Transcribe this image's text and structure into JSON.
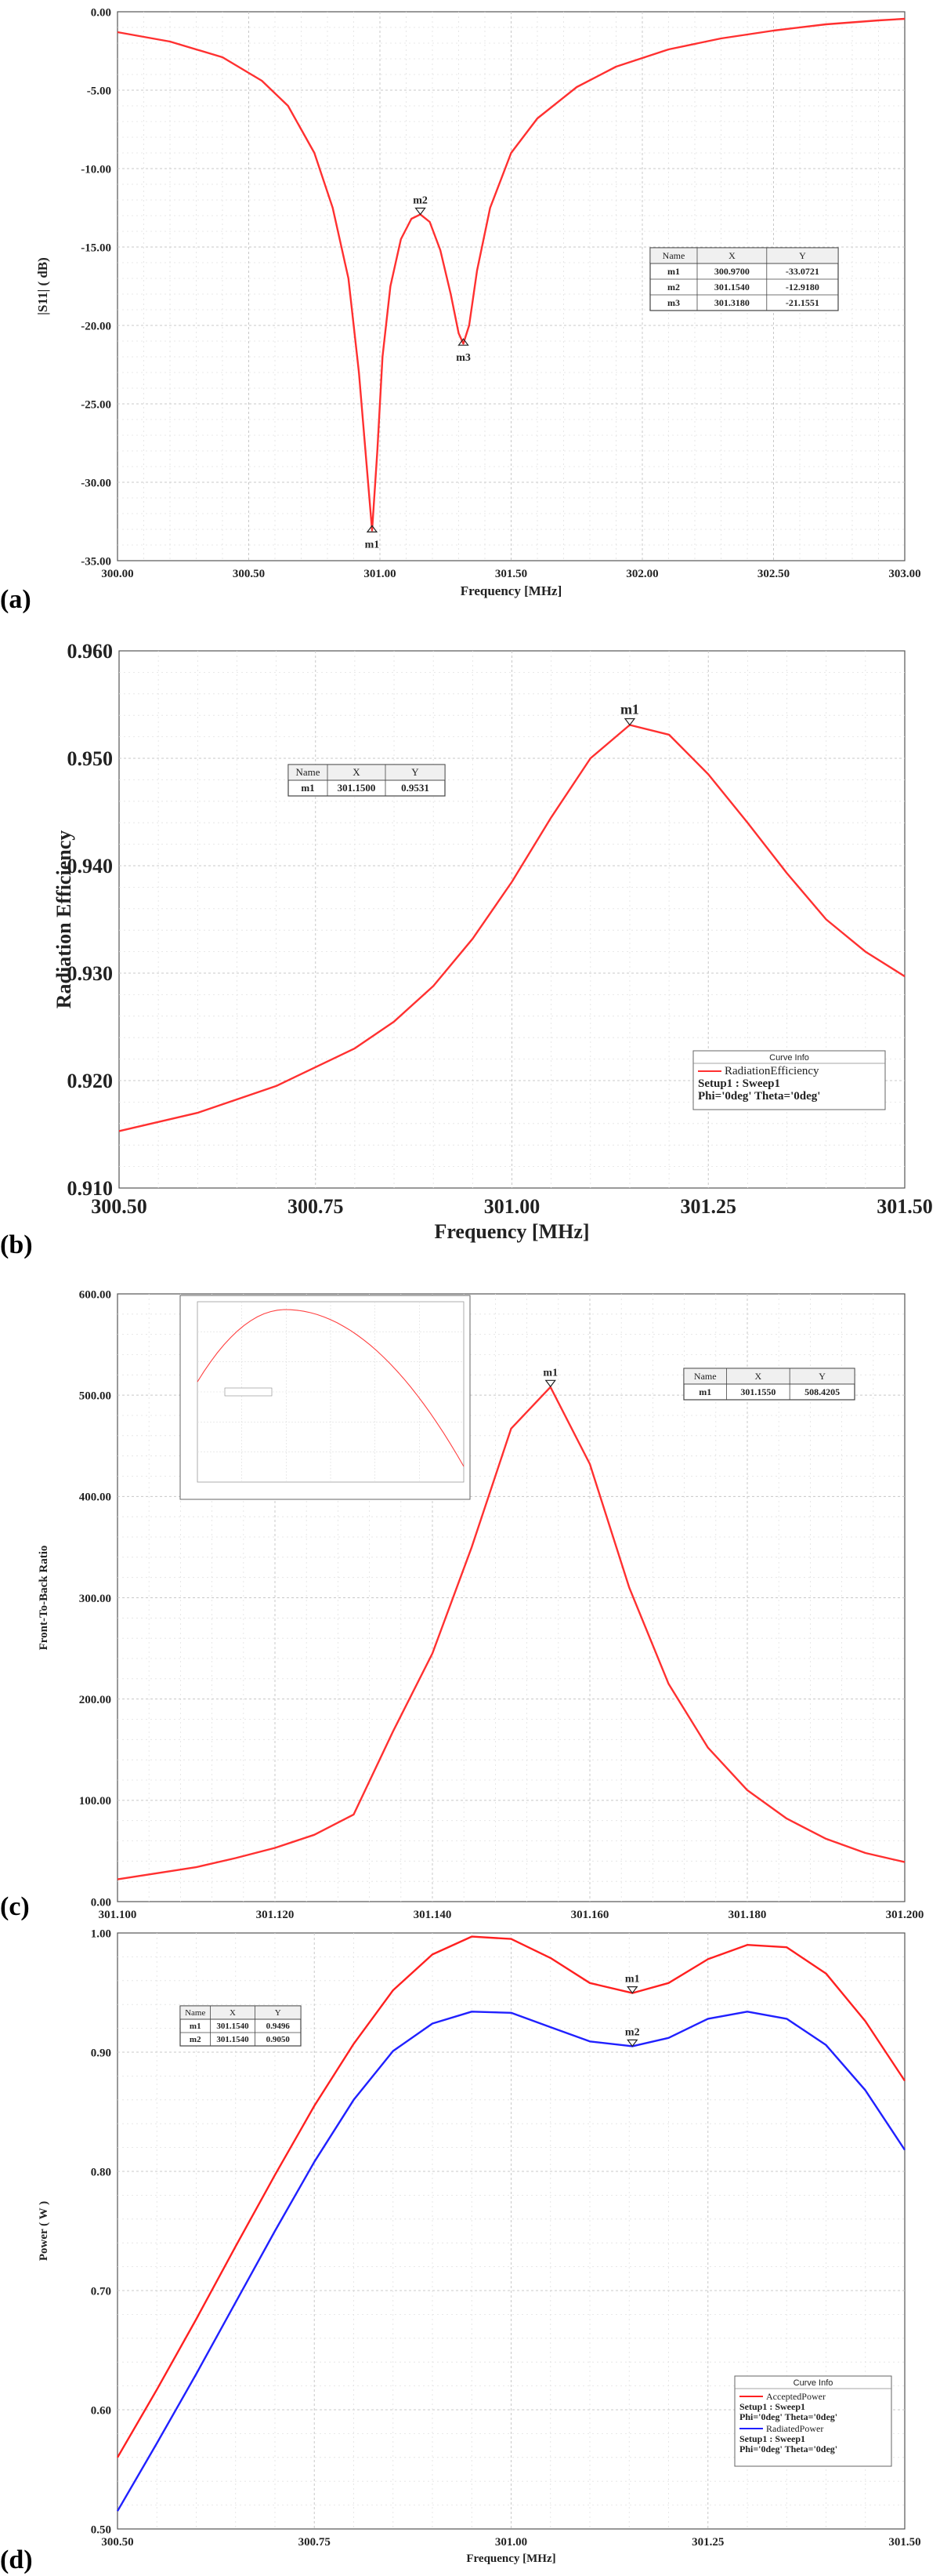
{
  "panel_labels": [
    "(a)",
    "(b)",
    "(c)",
    "(d)"
  ],
  "chart_data": [
    {
      "id": "a",
      "type": "line",
      "xlabel": "Frequency [MHz]",
      "ylabel": "|S11| ( dB)",
      "xlim": [
        300.0,
        303.0
      ],
      "ylim": [
        -35.0,
        0.0
      ],
      "xticks": [
        "300.00",
        "300.50",
        "301.00",
        "301.50",
        "302.00",
        "302.50",
        "303.00"
      ],
      "yticks": [
        "0.00",
        "-5.00",
        "-10.00",
        "-15.00",
        "-20.00",
        "-25.00",
        "-30.00",
        "-35.00"
      ],
      "grid": true,
      "series": [
        {
          "color": "#ff3030",
          "x": [
            300.0,
            300.2,
            300.4,
            300.55,
            300.65,
            300.75,
            300.82,
            300.88,
            300.92,
            300.95,
            300.97,
            300.99,
            301.01,
            301.04,
            301.08,
            301.12,
            301.154,
            301.19,
            301.23,
            301.27,
            301.3,
            301.318,
            301.34,
            301.37,
            301.42,
            301.5,
            301.6,
            301.75,
            301.9,
            302.1,
            302.3,
            302.5,
            302.7,
            302.9,
            303.0
          ],
          "y": [
            -1.3,
            -1.9,
            -2.9,
            -4.4,
            -6.0,
            -9.0,
            -12.5,
            -17.0,
            -23.0,
            -29.0,
            -33.07,
            -28.0,
            -22.0,
            -17.5,
            -14.5,
            -13.2,
            -12.92,
            -13.4,
            -15.2,
            -18.0,
            -20.5,
            -21.16,
            -20.0,
            -16.5,
            -12.5,
            -9.0,
            -6.8,
            -4.8,
            -3.5,
            -2.4,
            -1.7,
            -1.2,
            -0.8,
            -0.55,
            -0.45
          ]
        }
      ],
      "markers": [
        {
          "name": "m1",
          "x": 300.97,
          "y": -33.07
        },
        {
          "name": "m2",
          "x": 301.154,
          "y": -12.92
        },
        {
          "name": "m3",
          "x": 301.318,
          "y": -21.16
        }
      ],
      "marker_table": {
        "headers": [
          "Name",
          "X",
          "Y"
        ],
        "rows": [
          [
            "m1",
            "300.9700",
            "-33.0721"
          ],
          [
            "m2",
            "301.1540",
            "-12.9180"
          ],
          [
            "m3",
            "301.3180",
            "-21.1551"
          ]
        ]
      }
    },
    {
      "id": "b",
      "type": "line",
      "xlabel": "Frequency [MHz]",
      "ylabel": "Radiation Efficiency",
      "xlim": [
        300.5,
        301.5
      ],
      "ylim": [
        0.91,
        0.96
      ],
      "xticks": [
        "300.50",
        "300.75",
        "301.00",
        "301.25",
        "301.50"
      ],
      "yticks": [
        "0.960",
        "0.950",
        "0.940",
        "0.930",
        "0.920",
        "0.910"
      ],
      "grid": true,
      "series": [
        {
          "color": "#ff3030",
          "x": [
            300.5,
            300.6,
            300.7,
            300.8,
            300.85,
            300.9,
            300.95,
            301.0,
            301.05,
            301.1,
            301.15,
            301.2,
            301.25,
            301.3,
            301.35,
            301.4,
            301.45,
            301.5
          ],
          "y": [
            0.9153,
            0.917,
            0.9195,
            0.923,
            0.9255,
            0.9288,
            0.9332,
            0.9385,
            0.9445,
            0.95,
            0.9531,
            0.9522,
            0.9485,
            0.944,
            0.9393,
            0.935,
            0.932,
            0.9297
          ]
        }
      ],
      "markers": [
        {
          "name": "m1",
          "x": 301.15,
          "y": 0.9531
        }
      ],
      "marker_table": {
        "headers": [
          "Name",
          "X",
          "Y"
        ],
        "rows": [
          [
            "m1",
            "301.1500",
            "0.9531"
          ]
        ]
      },
      "legend": {
        "title": "Curve Info",
        "entries": [
          {
            "label": "RadiationEfficiency",
            "lines": [
              "Setup1 : Sweep1",
              "Phi='0deg' Theta='0deg'"
            ],
            "color": "#ff3030"
          }
        ]
      }
    },
    {
      "id": "c",
      "type": "line",
      "xlabel": "Frequency [MHz]",
      "ylabel": "Front-To-Back Ratio",
      "xlim": [
        301.1,
        301.2
      ],
      "ylim": [
        0.0,
        600.0
      ],
      "xticks": [
        "301.100",
        "301.120",
        "301.140",
        "301.160",
        "301.180",
        "301.200"
      ],
      "yticks": [
        "600.00",
        "500.00",
        "400.00",
        "300.00",
        "200.00",
        "100.00",
        "0.00"
      ],
      "grid": true,
      "series": [
        {
          "color": "#ff3030",
          "x": [
            301.1,
            301.11,
            301.115,
            301.12,
            301.125,
            301.13,
            301.135,
            301.14,
            301.145,
            301.15,
            301.155,
            301.16,
            301.165,
            301.17,
            301.175,
            301.18,
            301.185,
            301.19,
            301.195,
            301.2
          ],
          "y": [
            22,
            34,
            43,
            53,
            66,
            86,
            168,
            245,
            350,
            467,
            508,
            432,
            310,
            215,
            152,
            110,
            82,
            62,
            48,
            39
          ]
        }
      ],
      "markers": [
        {
          "name": "m1",
          "x": 301.155,
          "y": 508.4205
        }
      ],
      "marker_table": {
        "headers": [
          "Name",
          "X",
          "Y"
        ],
        "rows": [
          [
            "m1",
            "301.1550",
            "508.4205"
          ]
        ]
      }
    },
    {
      "id": "d",
      "type": "line",
      "xlabel": "Frequency [MHz]",
      "ylabel": "Power ( W )",
      "xlim": [
        300.5,
        301.5
      ],
      "ylim": [
        0.5,
        1.0
      ],
      "xticks": [
        "300.50",
        "300.75",
        "301.00",
        "301.25",
        "301.50"
      ],
      "yticks": [
        "1.00",
        "0.90",
        "0.80",
        "0.70",
        "0.60",
        "0.50"
      ],
      "grid": true,
      "series": [
        {
          "color": "#ff2020",
          "x": [
            300.5,
            300.55,
            300.6,
            300.65,
            300.7,
            300.75,
            300.8,
            300.85,
            300.9,
            300.95,
            301.0,
            301.05,
            301.1,
            301.154,
            301.2,
            301.25,
            301.3,
            301.35,
            301.4,
            301.45,
            301.5
          ],
          "y": [
            0.56,
            0.617,
            0.676,
            0.737,
            0.797,
            0.855,
            0.907,
            0.952,
            0.982,
            0.997,
            0.995,
            0.979,
            0.958,
            0.9496,
            0.958,
            0.978,
            0.99,
            0.988,
            0.966,
            0.926,
            0.876
          ]
        },
        {
          "color": "#2020ff",
          "x": [
            300.5,
            300.55,
            300.6,
            300.65,
            300.7,
            300.75,
            300.8,
            300.85,
            300.9,
            300.95,
            301.0,
            301.05,
            301.1,
            301.154,
            301.2,
            301.25,
            301.3,
            301.35,
            301.4,
            301.45,
            301.5
          ],
          "y": [
            0.515,
            0.572,
            0.63,
            0.69,
            0.75,
            0.808,
            0.86,
            0.901,
            0.924,
            0.934,
            0.933,
            0.921,
            0.909,
            0.905,
            0.912,
            0.928,
            0.934,
            0.928,
            0.906,
            0.868,
            0.818
          ]
        }
      ],
      "markers": [
        {
          "name": "m1",
          "x": 301.154,
          "y": 0.9496
        },
        {
          "name": "m2",
          "x": 301.154,
          "y": 0.905
        }
      ],
      "marker_table": {
        "headers": [
          "Name",
          "X",
          "Y"
        ],
        "rows": [
          [
            "m1",
            "301.1540",
            "0.9496"
          ],
          [
            "m2",
            "301.1540",
            "0.9050"
          ]
        ]
      },
      "legend": {
        "title": "Curve Info",
        "entries": [
          {
            "label": "AcceptedPower",
            "lines": [
              "Setup1 : Sweep1",
              "Phi='0deg' Theta='0deg'"
            ],
            "color": "#ff2020"
          },
          {
            "label": "RadiatedPower",
            "lines": [
              "Setup1 : Sweep1",
              "Phi='0deg' Theta='0deg'"
            ],
            "color": "#2020ff"
          }
        ]
      }
    }
  ]
}
